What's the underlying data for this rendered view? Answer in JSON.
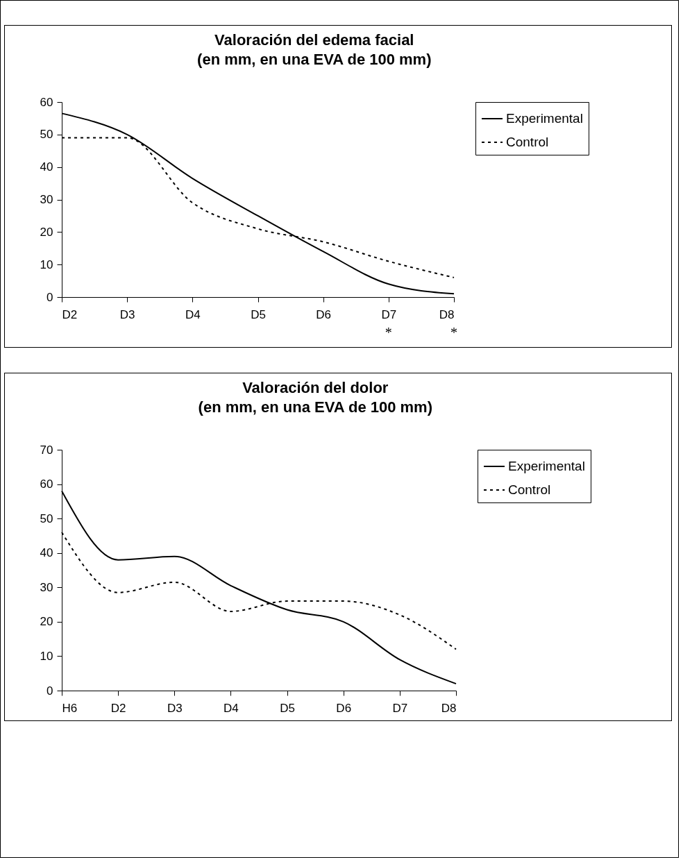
{
  "chart_data": [
    {
      "type": "line",
      "title": "Valoración del edema facial",
      "subtitle": "(en mm, en una EVA de 100 mm)",
      "categories": [
        "D2",
        "D3",
        "D4",
        "D5",
        "D6",
        "D7",
        "D8"
      ],
      "series": [
        {
          "name": "Experimental",
          "color": "#000000",
          "line_style": "solid",
          "values": [
            56.5,
            50,
            36.5,
            25,
            14,
            4,
            1
          ]
        },
        {
          "name": "Control",
          "color": "#000000",
          "line_style": "dotted",
          "values": [
            49,
            49,
            29,
            21,
            17,
            11,
            6
          ]
        }
      ],
      "ylim": [
        0,
        60
      ],
      "yticks": [
        0,
        10,
        20,
        30,
        40,
        50,
        60
      ],
      "legend": "right",
      "annotations": [
        "*",
        "*"
      ]
    },
    {
      "type": "line",
      "title": "Valoración del dolor",
      "subtitle": "(en mm, en una EVA de 100 mm)",
      "categories": [
        "H6",
        "D2",
        "D3",
        "D4",
        "D5",
        "D6",
        "D7",
        "D8"
      ],
      "series": [
        {
          "name": "Experimental",
          "color": "#000000",
          "line_style": "solid",
          "values": [
            58,
            38,
            39,
            30.5,
            23.5,
            20,
            9,
            2
          ]
        },
        {
          "name": "Control",
          "color": "#000000",
          "line_style": "dotted",
          "values": [
            46,
            28.5,
            31.5,
            23,
            26,
            26,
            22,
            12
          ]
        }
      ],
      "ylim": [
        0,
        70
      ],
      "yticks": [
        0,
        10,
        20,
        30,
        40,
        50,
        60,
        70
      ],
      "legend": "right"
    }
  ]
}
